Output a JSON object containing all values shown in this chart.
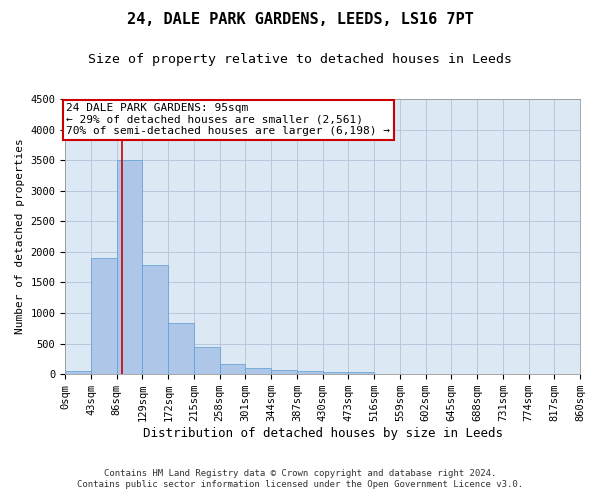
{
  "title": "24, DALE PARK GARDENS, LEEDS, LS16 7PT",
  "subtitle": "Size of property relative to detached houses in Leeds",
  "xlabel": "Distribution of detached houses by size in Leeds",
  "ylabel": "Number of detached properties",
  "footnote1": "Contains HM Land Registry data © Crown copyright and database right 2024.",
  "footnote2": "Contains public sector information licensed under the Open Government Licence v3.0.",
  "bin_edges": [
    0,
    43,
    86,
    129,
    172,
    215,
    258,
    301,
    344,
    387,
    430,
    473,
    516,
    559,
    602,
    645,
    688,
    731,
    774,
    817,
    860
  ],
  "bar_heights": [
    50,
    1900,
    3500,
    1780,
    840,
    450,
    160,
    100,
    70,
    55,
    40,
    30,
    0,
    0,
    0,
    0,
    0,
    0,
    0,
    0
  ],
  "bar_color": "#aec6e8",
  "bar_edgecolor": "#5a9fd4",
  "property_size": 95,
  "vline_color": "#cc0000",
  "annotation_line1": "24 DALE PARK GARDENS: 95sqm",
  "annotation_line2": "← 29% of detached houses are smaller (2,561)",
  "annotation_line3": "70% of semi-detached houses are larger (6,198) →",
  "annotation_box_color": "#cc0000",
  "annotation_text_color": "#000000",
  "ylim": [
    0,
    4500
  ],
  "yticks": [
    0,
    500,
    1000,
    1500,
    2000,
    2500,
    3000,
    3500,
    4000,
    4500
  ],
  "background_color": "#ffffff",
  "plot_bg_color": "#dde8f5",
  "grid_color": "#b8c8dc",
  "title_fontsize": 11,
  "subtitle_fontsize": 9.5,
  "xlabel_fontsize": 9,
  "ylabel_fontsize": 8,
  "tick_fontsize": 7.5,
  "annotation_fontsize": 8,
  "footnote_fontsize": 6.5
}
